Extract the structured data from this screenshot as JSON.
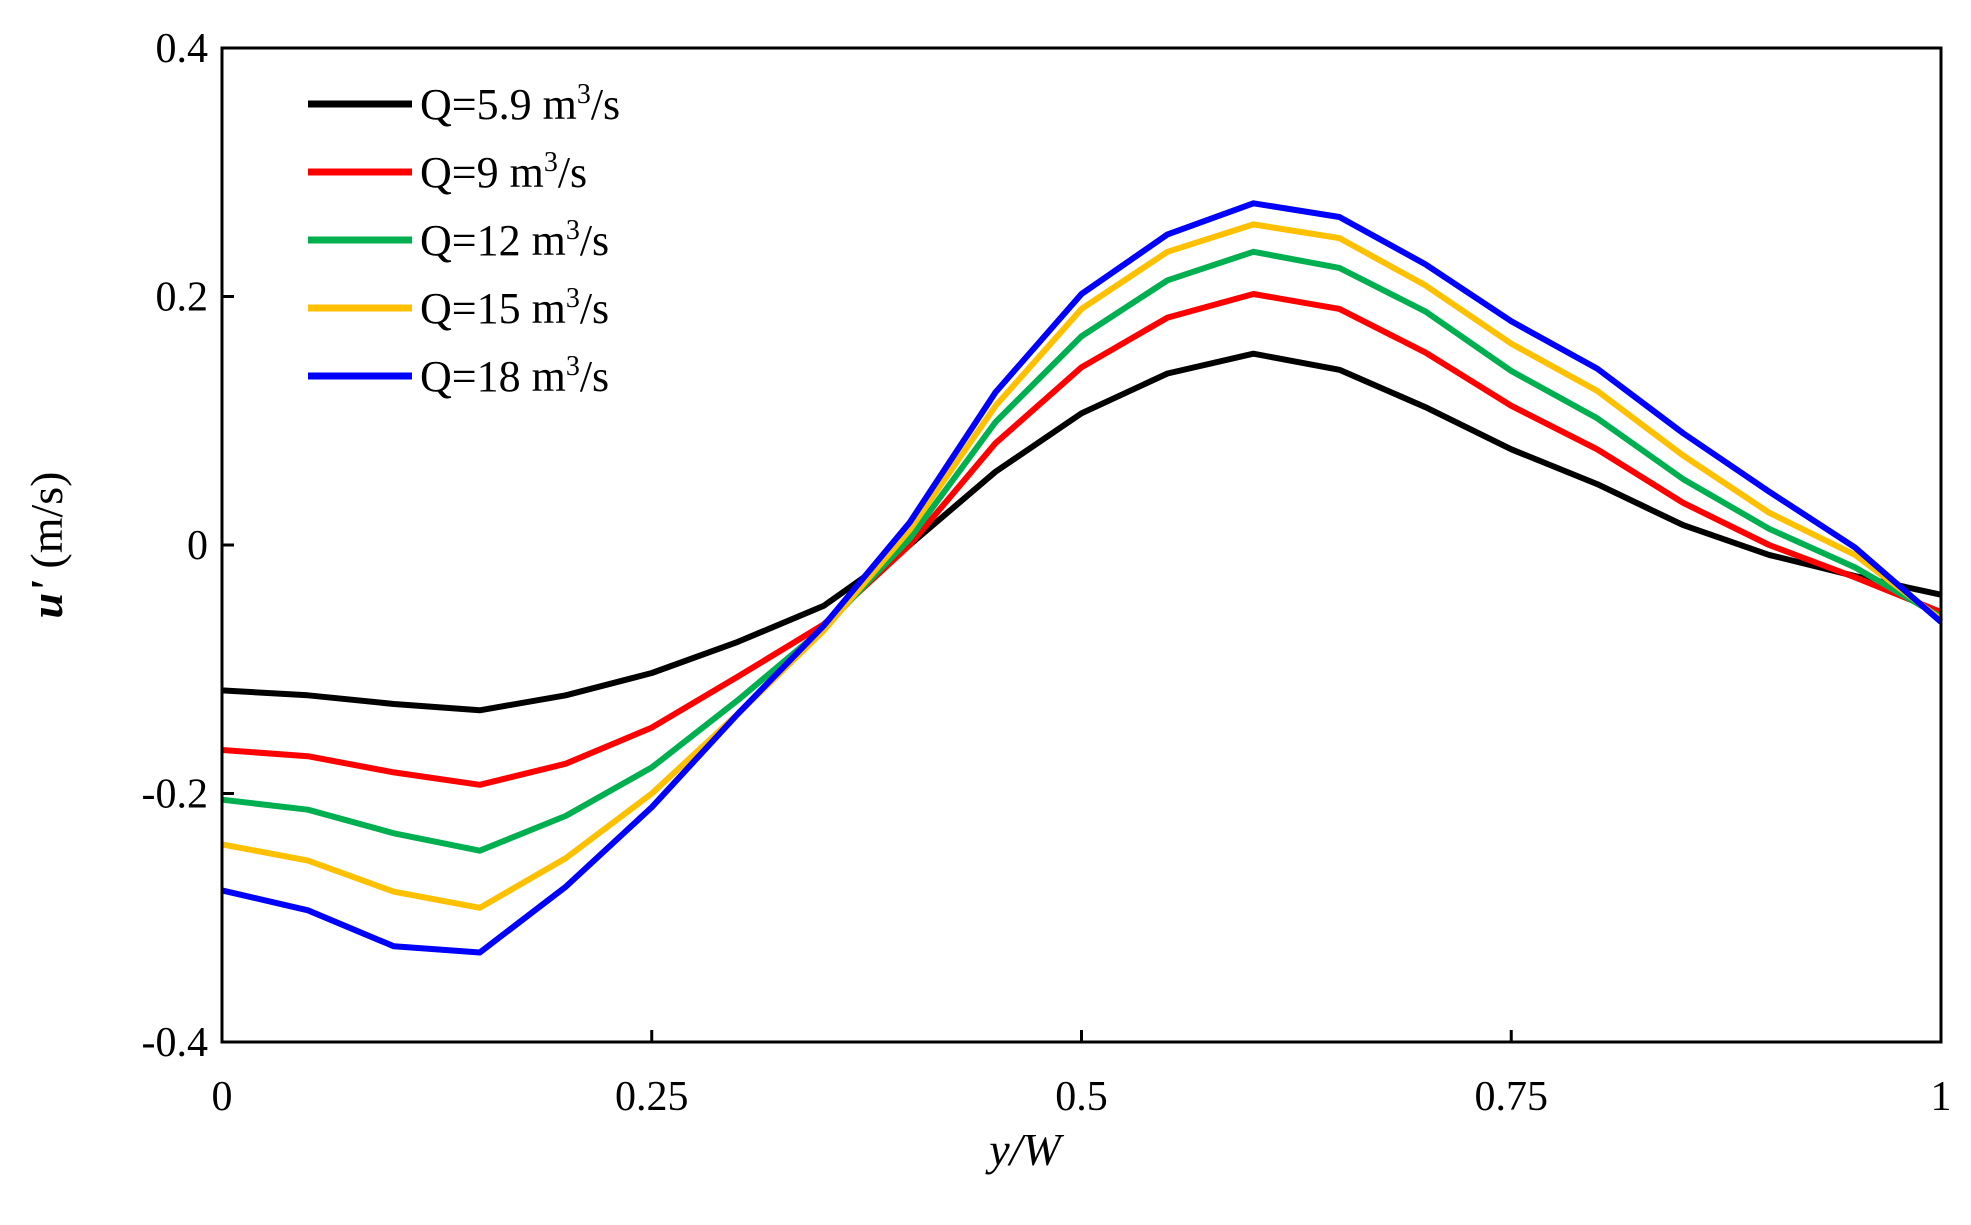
{
  "chart_data": {
    "type": "line",
    "title": "",
    "xlabel": {
      "var": "y",
      "rest": "/W"
    },
    "ylabel": {
      "var": "u'",
      "rest": " (m/s)"
    },
    "xlim": [
      0,
      1
    ],
    "ylim": [
      -0.4,
      0.4
    ],
    "grid": false,
    "legend_position": "top-left",
    "x_ticks": [
      {
        "value": 0,
        "label": "0"
      },
      {
        "value": 0.25,
        "label": "0.25"
      },
      {
        "value": 0.5,
        "label": "0.5"
      },
      {
        "value": 0.75,
        "label": "0.75"
      },
      {
        "value": 1,
        "label": "1"
      }
    ],
    "y_ticks": [
      {
        "value": 0.4,
        "label": "0.4"
      },
      {
        "value": 0.2,
        "label": "0.2"
      },
      {
        "value": 0,
        "label": "0"
      },
      {
        "value": -0.2,
        "label": "-0.2"
      },
      {
        "value": -0.4,
        "label": "-0.4"
      }
    ],
    "x": [
      0,
      0.05,
      0.1,
      0.15,
      0.2,
      0.25,
      0.3,
      0.35,
      0.4,
      0.45,
      0.5,
      0.55,
      0.6,
      0.65,
      0.7,
      0.75,
      0.8,
      0.85,
      0.9,
      0.95,
      1
    ],
    "series": [
      {
        "name": "Q=5.9 m3/s",
        "label_main": "Q=5.9 m",
        "label_sup": "3",
        "label_tail": "/s",
        "color": "#000000",
        "values": [
          -0.117,
          -0.121,
          -0.128,
          -0.133,
          -0.121,
          -0.103,
          -0.078,
          -0.049,
          0.0,
          0.059,
          0.106,
          0.138,
          0.154,
          0.141,
          0.111,
          0.077,
          0.049,
          0.016,
          -0.008,
          -0.025,
          -0.04
        ]
      },
      {
        "name": "Q=9 m3/s",
        "label_main": "Q=9 m",
        "label_sup": "3",
        "label_tail": "/s",
        "color": "#ff0000",
        "values": [
          -0.165,
          -0.17,
          -0.183,
          -0.193,
          -0.176,
          -0.147,
          -0.106,
          -0.064,
          0.0,
          0.082,
          0.143,
          0.183,
          0.202,
          0.19,
          0.155,
          0.112,
          0.077,
          0.034,
          0.0,
          -0.026,
          -0.054
        ]
      },
      {
        "name": "Q=12 m3/s",
        "label_main": "Q=12 m",
        "label_sup": "3",
        "label_tail": "/s",
        "color": "#00b050",
        "values": [
          -0.205,
          -0.213,
          -0.232,
          -0.246,
          -0.218,
          -0.179,
          -0.125,
          -0.067,
          0.005,
          0.099,
          0.168,
          0.213,
          0.236,
          0.223,
          0.188,
          0.14,
          0.102,
          0.053,
          0.013,
          -0.018,
          -0.058
        ]
      },
      {
        "name": "Q=15 m3/s",
        "label_main": "Q=15 m",
        "label_sup": "3",
        "label_tail": "/s",
        "color": "#ffc000",
        "values": [
          -0.241,
          -0.254,
          -0.279,
          -0.292,
          -0.252,
          -0.2,
          -0.136,
          -0.069,
          0.012,
          0.112,
          0.19,
          0.236,
          0.258,
          0.247,
          0.209,
          0.162,
          0.124,
          0.072,
          0.026,
          -0.008,
          -0.06
        ]
      },
      {
        "name": "Q=18 m3/s",
        "label_main": "Q=18 m",
        "label_sup": "3",
        "label_tail": "/s",
        "color": "#0000ff",
        "values": [
          -0.278,
          -0.294,
          -0.323,
          -0.328,
          -0.275,
          -0.211,
          -0.136,
          -0.065,
          0.018,
          0.123,
          0.202,
          0.25,
          0.275,
          0.264,
          0.226,
          0.18,
          0.142,
          0.09,
          0.043,
          -0.002,
          -0.062
        ]
      }
    ]
  }
}
